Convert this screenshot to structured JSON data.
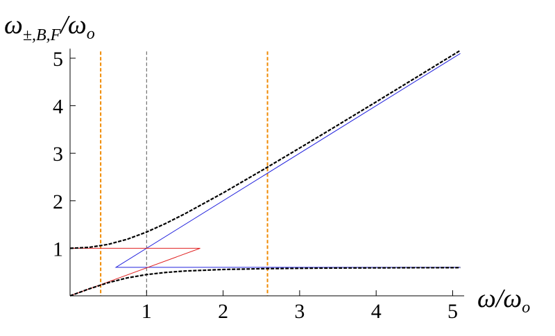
{
  "chart_data": {
    "type": "line",
    "xlabel": [
      "ω",
      "/ω",
      "o"
    ],
    "ylabel": [
      "ω",
      "±,B,F",
      "/ω",
      "o"
    ],
    "xlim": [
      0,
      5.15
    ],
    "ylim": [
      0,
      5.2
    ],
    "xticks": [
      1,
      2,
      3,
      4,
      5
    ],
    "yticks": [
      1,
      2,
      3,
      4,
      5
    ],
    "series": [
      {
        "color": "#000000",
        "dashed": true,
        "x": [
          0,
          0.25,
          0.5,
          0.75,
          1,
          1.25,
          1.5,
          2,
          2.5,
          3,
          3.5,
          4,
          4.5,
          5,
          5.1
        ],
        "values": [
          1,
          1.02,
          1.083,
          1.192,
          1.342,
          1.523,
          1.726,
          2.166,
          2.632,
          3.109,
          3.593,
          4.081,
          4.572,
          5.065,
          5.163
        ]
      },
      {
        "color": "#000000",
        "dashed": true,
        "x": [
          0,
          0.25,
          0.5,
          0.75,
          1,
          1.25,
          1.5,
          2,
          2.5,
          3,
          3.5,
          4,
          4.5,
          5,
          5.1
        ],
        "values": [
          0,
          0.147,
          0.277,
          0.378,
          0.447,
          0.492,
          0.522,
          0.554,
          0.57,
          0.579,
          0.585,
          0.588,
          0.591,
          0.592,
          0.593
        ]
      },
      {
        "color": "#2222dd",
        "dashed": false,
        "x": [
          5.1,
          0.6,
          5.1
        ],
        "values": [
          0.6,
          0.6,
          5.1
        ]
      },
      {
        "color": "#e02020",
        "dashed": false,
        "x": [
          0,
          1.7,
          0
        ],
        "values": [
          1,
          1,
          0
        ]
      }
    ],
    "vlines": [
      {
        "x": 0.4,
        "color": "#f08a00"
      },
      {
        "x": 1,
        "color": "#555555"
      },
      {
        "x": 2.58,
        "color": "#f08a00"
      }
    ]
  }
}
